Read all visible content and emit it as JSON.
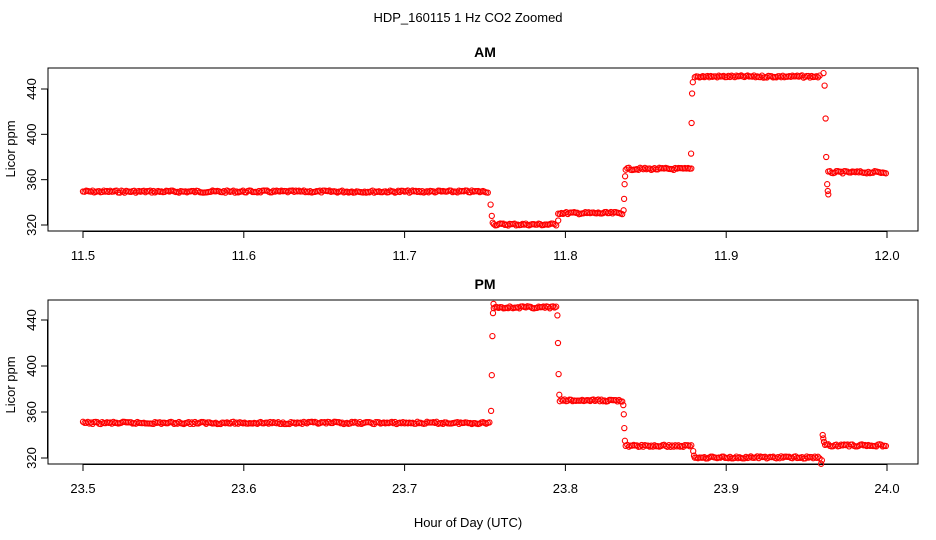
{
  "figure": {
    "title": "HDP_160115  1 Hz CO2 Zoomed",
    "xlabel": "Hour of Day (UTC)"
  },
  "chart_data": [
    {
      "type": "scatter",
      "title": "AM",
      "xlabel": "",
      "ylabel": "Licor ppm",
      "xlim": [
        11.5,
        12.0
      ],
      "ylim": [
        316,
        460
      ],
      "xticks": [
        11.5,
        11.6,
        11.7,
        11.8,
        11.9,
        12.0
      ],
      "xtick_labels": [
        "11.5",
        "11.6",
        "11.7",
        "11.8",
        "11.9",
        "12.0"
      ],
      "yticks": [
        320,
        360,
        400,
        440
      ],
      "ytick_labels": [
        "320",
        "360",
        "400",
        "440"
      ],
      "grid": false,
      "series": [
        {
          "color": "#ff0000",
          "marker": "open-circle",
          "segments": [
            {
              "x_start": 11.5,
              "x_end": 11.7525,
              "y": 349.5
            },
            {
              "x_start": 11.7555,
              "x_end": 11.7945,
              "y": 320.5
            },
            {
              "x_start": 11.7955,
              "x_end": 11.8355,
              "y": 330.5
            },
            {
              "x_start": 11.8375,
              "x_end": 11.8785,
              "y": 369.5
            },
            {
              "x_start": 11.8805,
              "x_end": 11.9585,
              "y": 451.0
            },
            {
              "x_start": 11.9635,
              "x_end": 12.0,
              "y": 366.5
            }
          ],
          "points": [
            {
              "x": 11.7535,
              "y": 338
            },
            {
              "x": 11.7542,
              "y": 328
            },
            {
              "x": 11.7548,
              "y": 322
            },
            {
              "x": 11.7955,
              "y": 324
            },
            {
              "x": 11.8362,
              "y": 333
            },
            {
              "x": 11.8365,
              "y": 343
            },
            {
              "x": 11.8368,
              "y": 356
            },
            {
              "x": 11.8371,
              "y": 363
            },
            {
              "x": 11.8782,
              "y": 383
            },
            {
              "x": 11.8785,
              "y": 410
            },
            {
              "x": 11.8788,
              "y": 436
            },
            {
              "x": 11.8792,
              "y": 446
            },
            {
              "x": 11.9605,
              "y": 454
            },
            {
              "x": 11.9612,
              "y": 443
            },
            {
              "x": 11.9618,
              "y": 414
            },
            {
              "x": 11.9622,
              "y": 380
            },
            {
              "x": 11.9628,
              "y": 356
            },
            {
              "x": 11.9632,
              "y": 350
            },
            {
              "x": 11.9635,
              "y": 347
            }
          ]
        }
      ]
    },
    {
      "type": "scatter",
      "title": "PM",
      "xlabel": "",
      "ylabel": "Licor ppm",
      "xlim": [
        23.5,
        24.0
      ],
      "ylim": [
        316,
        460
      ],
      "xticks": [
        23.5,
        23.6,
        23.7,
        23.8,
        23.9,
        24.0
      ],
      "xtick_labels": [
        "23.5",
        "23.6",
        "23.7",
        "23.8",
        "23.9",
        "24.0"
      ],
      "yticks": [
        320,
        360,
        400,
        440
      ],
      "ytick_labels": [
        "320",
        "360",
        "400",
        "440"
      ],
      "grid": false,
      "series": [
        {
          "color": "#ff0000",
          "marker": "open-circle",
          "segments": [
            {
              "x_start": 23.5,
              "x_end": 23.7535,
              "y": 350.5
            },
            {
              "x_start": 23.7555,
              "x_end": 23.7945,
              "y": 451.0
            },
            {
              "x_start": 23.7965,
              "x_end": 23.8355,
              "y": 370.0
            },
            {
              "x_start": 23.8375,
              "x_end": 23.8785,
              "y": 330.5
            },
            {
              "x_start": 23.8805,
              "x_end": 23.9585,
              "y": 320.5
            },
            {
              "x_start": 23.9615,
              "x_end": 24.0,
              "y": 331.0
            }
          ],
          "points": [
            {
              "x": 23.7538,
              "y": 361
            },
            {
              "x": 23.7542,
              "y": 392
            },
            {
              "x": 23.7546,
              "y": 426
            },
            {
              "x": 23.755,
              "y": 446
            },
            {
              "x": 23.7553,
              "y": 454
            },
            {
              "x": 23.795,
              "y": 444
            },
            {
              "x": 23.7954,
              "y": 420
            },
            {
              "x": 23.7958,
              "y": 393
            },
            {
              "x": 23.7962,
              "y": 375
            },
            {
              "x": 23.836,
              "y": 366
            },
            {
              "x": 23.8363,
              "y": 358
            },
            {
              "x": 23.8366,
              "y": 346
            },
            {
              "x": 23.837,
              "y": 335
            },
            {
              "x": 23.8795,
              "y": 326
            },
            {
              "x": 23.88,
              "y": 322
            },
            {
              "x": 23.959,
              "y": 315
            },
            {
              "x": 23.9595,
              "y": 318
            },
            {
              "x": 23.96,
              "y": 340
            },
            {
              "x": 23.9604,
              "y": 337
            },
            {
              "x": 23.9608,
              "y": 334
            }
          ]
        }
      ]
    }
  ]
}
